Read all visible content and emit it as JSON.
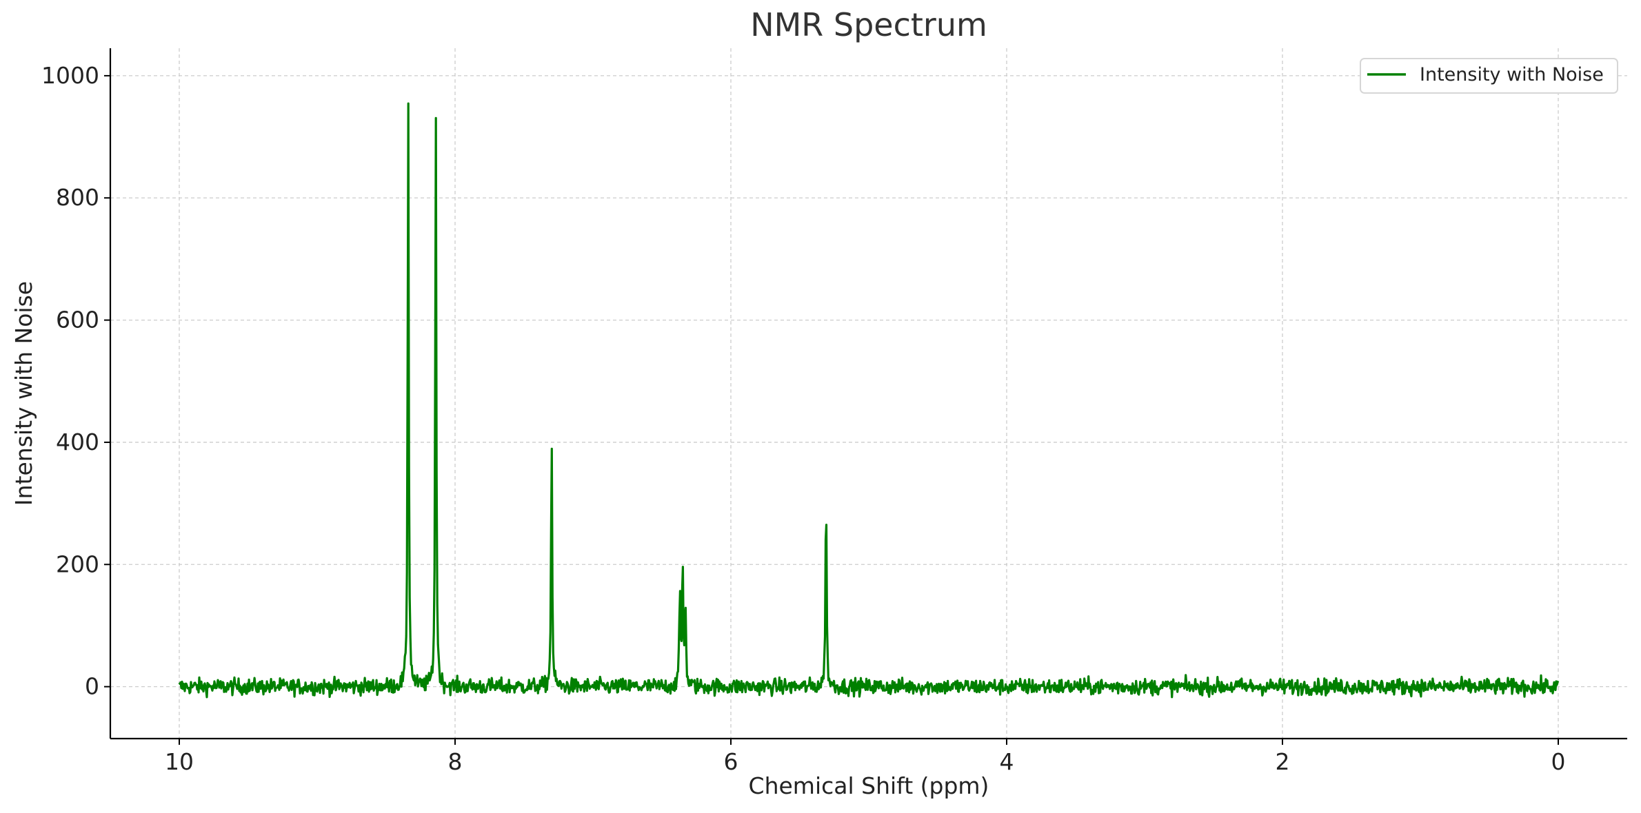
{
  "chart_data": {
    "type": "line",
    "title": "NMR Spectrum",
    "xlabel": "Chemical Shift (ppm)",
    "ylabel": "Intensity with Noise",
    "x_axis_reversed": true,
    "xlim": [
      10.5,
      -0.5
    ],
    "ylim": [
      -85,
      1045
    ],
    "xticks": [
      10,
      8,
      6,
      4,
      2,
      0
    ],
    "yticks": [
      0,
      200,
      400,
      600,
      800,
      1000
    ],
    "grid": true,
    "legend_position": "top-right",
    "colors": {
      "series": "#008000",
      "grid": "#cccccc",
      "axis": "#000000"
    },
    "baseline_noise_amplitude": 12,
    "series": [
      {
        "name": "Intensity with Noise",
        "color": "#008000",
        "x_range": [
          10,
          0
        ],
        "n_points": 2000,
        "peaks": [
          {
            "ppm": 8.34,
            "intensity": 990
          },
          {
            "ppm": 8.14,
            "intensity": 968
          },
          {
            "ppm": 7.3,
            "intensity": 430
          },
          {
            "ppm": 6.37,
            "intensity": 165
          },
          {
            "ppm": 6.35,
            "intensity": 213
          },
          {
            "ppm": 6.33,
            "intensity": 150
          },
          {
            "ppm": 5.31,
            "intensity": 340
          }
        ]
      }
    ]
  }
}
